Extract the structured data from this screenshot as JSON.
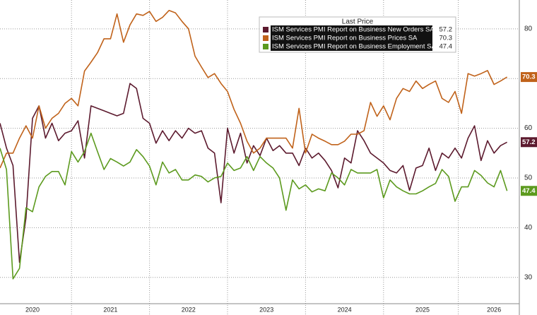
{
  "chart_data": {
    "type": "line",
    "legend_title": "Last Price",
    "categories": [
      null,
      null,
      null,
      null,
      null,
      "2020",
      null,
      null,
      null,
      null,
      null,
      null,
      null,
      null,
      null,
      null,
      null,
      "2021",
      null,
      null,
      null,
      null,
      null,
      null,
      null,
      null,
      null,
      null,
      null,
      "2022",
      null,
      null,
      null,
      null,
      null,
      null,
      null,
      null,
      null,
      null,
      null,
      "2023",
      null,
      null,
      null,
      null,
      null,
      null,
      null,
      null,
      null,
      null,
      null,
      "2024",
      null,
      null,
      null,
      null,
      null,
      null,
      null,
      null,
      null,
      null,
      null,
      "2025",
      null,
      null,
      null,
      null,
      null,
      null,
      null,
      null,
      null,
      null,
      "2026",
      null,
      null
    ],
    "series": [
      {
        "name": "ISM Services PMI Report on Business New Orders SA",
        "color": "#5c1a2e",
        "last": 57.2,
        "values": [
          61,
          56,
          52.5,
          33,
          42,
          62,
          64.5,
          58,
          61,
          57.5,
          59,
          59.5,
          61.5,
          54,
          64.5,
          64,
          63.5,
          63,
          62.5,
          63,
          69,
          68,
          62,
          61,
          57,
          59.5,
          57.5,
          59.5,
          58,
          60,
          59,
          59.5,
          56,
          55,
          45,
          60,
          55,
          59,
          53,
          56.5,
          54.5,
          58,
          55.5,
          56.5,
          55,
          55,
          52.5,
          56,
          54,
          55,
          53.5,
          51.5,
          48,
          54,
          53,
          59.5,
          57.5,
          55,
          54,
          53,
          51.5,
          51,
          52.5,
          47.5,
          52,
          52.5,
          56,
          51.5,
          55,
          54,
          56,
          54,
          58,
          60.5,
          53.5,
          57.5,
          55,
          56.5,
          57.2
        ]
      },
      {
        "name": "ISM Services PMI Report on Business Prices SA",
        "color": "#c0621a",
        "last": 70.3,
        "values": [
          52,
          55,
          55,
          58,
          60.5,
          58,
          64.5,
          60,
          62,
          63,
          65,
          66,
          64.5,
          71.5,
          73.3,
          75.2,
          78,
          78,
          83,
          77.3,
          80.8,
          83,
          82.7,
          83.5,
          81.5,
          82.3,
          83.7,
          83.2,
          81.5,
          80,
          74.5,
          72.3,
          70.2,
          71,
          69,
          67.4,
          63.8,
          61,
          57.4,
          55,
          56,
          58,
          58,
          58,
          58,
          56,
          64,
          55,
          58.8,
          58,
          57.4,
          56.7,
          56.7,
          57.4,
          58.8,
          58.8,
          59.5,
          65.2,
          62.4,
          64.5,
          61.7,
          66,
          68,
          67.4,
          69.5,
          68,
          68.8,
          69.5,
          66,
          65.2,
          67.4,
          63,
          71,
          70.5,
          71,
          71.6,
          68.8,
          69.5,
          70.3
        ]
      },
      {
        "name": "ISM Services PMI Report on Business Employment SA",
        "color": "#5c9a1e",
        "last": 47.4,
        "values": [
          56,
          51.7,
          29.7,
          31.8,
          44,
          43.2,
          48.2,
          50.3,
          51.3,
          51.3,
          48.6,
          55.3,
          53.2,
          55.3,
          59,
          55.3,
          51.7,
          53.9,
          53.2,
          52.4,
          53.2,
          55.7,
          54.3,
          52.4,
          48.6,
          53.2,
          51,
          51.7,
          49.6,
          49.6,
          50.6,
          50.3,
          49.2,
          50,
          50.3,
          53,
          51.5,
          52,
          54.3,
          51.5,
          54.3,
          53,
          52,
          50,
          43.5,
          49.6,
          47.8,
          48.6,
          47.2,
          47.8,
          47.4,
          51,
          50,
          48.6,
          51.7,
          51,
          51,
          51,
          51.7,
          46,
          49.6,
          48.2,
          47.4,
          46.8,
          46.8,
          47.4,
          48.2,
          48.9,
          51.7,
          50.3,
          45.3,
          48.2,
          48.2,
          51.5,
          50.5,
          49,
          48.2,
          51.5,
          47.4
        ]
      }
    ],
    "ylim": [
      24.7,
      85.8
    ],
    "yticks": [
      30,
      40,
      50,
      60,
      70,
      80
    ],
    "grid": true
  }
}
